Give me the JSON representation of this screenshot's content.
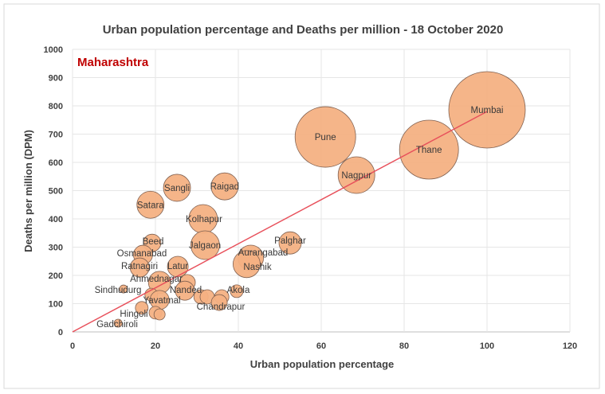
{
  "chart_data": {
    "type": "bubble",
    "title": "Urban population percentage and Deaths per million - 18 October 2020",
    "annotation": "Maharashtra",
    "xlabel": "Urban population percentage",
    "ylabel": "Deaths per million (DPM)",
    "xlim": [
      0,
      120
    ],
    "ylim": [
      0,
      1000
    ],
    "xticks": [
      0,
      20,
      40,
      60,
      80,
      100,
      120
    ],
    "yticks": [
      0,
      100,
      200,
      300,
      400,
      500,
      600,
      700,
      800,
      900,
      1000
    ],
    "grid": true,
    "colors": {
      "bubble": "#f4b183",
      "bubble_edge": "#7f6050",
      "trendline": "#e8505b",
      "annotation": "#c00000"
    },
    "trendline": {
      "from": [
        0,
        0
      ],
      "to": [
        100,
        780
      ]
    },
    "points": [
      {
        "name": "Mumbai",
        "x": 100,
        "y": 786,
        "size": 48
      },
      {
        "name": "Pune",
        "x": 61,
        "y": 690,
        "size": 38
      },
      {
        "name": "Thane",
        "x": 86,
        "y": 645,
        "size": 37
      },
      {
        "name": "Nagpur",
        "x": 68.5,
        "y": 555,
        "size": 23
      },
      {
        "name": "Palghar",
        "x": 52.5,
        "y": 315,
        "size": 14
      },
      {
        "name": "Aurangabad",
        "x": 43,
        "y": 262,
        "size": 16
      },
      {
        "name": "Nashik",
        "x": 42,
        "y": 240,
        "size": 17
      },
      {
        "name": "Sangli",
        "x": 25.2,
        "y": 510,
        "size": 17
      },
      {
        "name": "Raigad",
        "x": 36.7,
        "y": 515,
        "size": 17
      },
      {
        "name": "Satara",
        "x": 18.8,
        "y": 450,
        "size": 17
      },
      {
        "name": "Kolhapur",
        "x": 31.5,
        "y": 400,
        "size": 18
      },
      {
        "name": "Jalgaon",
        "x": 32,
        "y": 307,
        "size": 18
      },
      {
        "name": "Beed",
        "x": 19.2,
        "y": 315,
        "size": 11
      },
      {
        "name": "Osmanabad",
        "x": 17,
        "y": 273,
        "size": 12
      },
      {
        "name": "Ratnagiri",
        "x": 16.2,
        "y": 228,
        "size": 12
      },
      {
        "name": "Latur",
        "x": 25.4,
        "y": 231,
        "size": 13
      },
      {
        "name": "Ahmednagar",
        "x": 21,
        "y": 175,
        "size": 14
      },
      {
        "name": "Sindhudurg",
        "x": 12.3,
        "y": 152,
        "size": 5
      },
      {
        "name": "",
        "x": 27.7,
        "y": 175,
        "size": 10
      },
      {
        "name": "Nanded",
        "x": 27.1,
        "y": 146,
        "size": 12
      },
      {
        "name": "",
        "x": 31,
        "y": 124,
        "size": 9
      },
      {
        "name": "",
        "x": 32.5,
        "y": 124,
        "size": 9
      },
      {
        "name": "",
        "x": 36,
        "y": 124,
        "size": 9
      },
      {
        "name": "Chandrapur",
        "x": 35.4,
        "y": 104,
        "size": 10
      },
      {
        "name": "Akola",
        "x": 39.6,
        "y": 144,
        "size": 8
      },
      {
        "name": "",
        "x": 19,
        "y": 132,
        "size": 8
      },
      {
        "name": "Yavatmal",
        "x": 21,
        "y": 113,
        "size": 12
      },
      {
        "name": "Hingoli",
        "x": 16.7,
        "y": 85,
        "size": 8
      },
      {
        "name": "",
        "x": 20,
        "y": 68,
        "size": 8
      },
      {
        "name": "",
        "x": 21,
        "y": 62,
        "size": 7
      },
      {
        "name": "Gadchiroli",
        "x": 11,
        "y": 31,
        "size": 5
      }
    ]
  }
}
